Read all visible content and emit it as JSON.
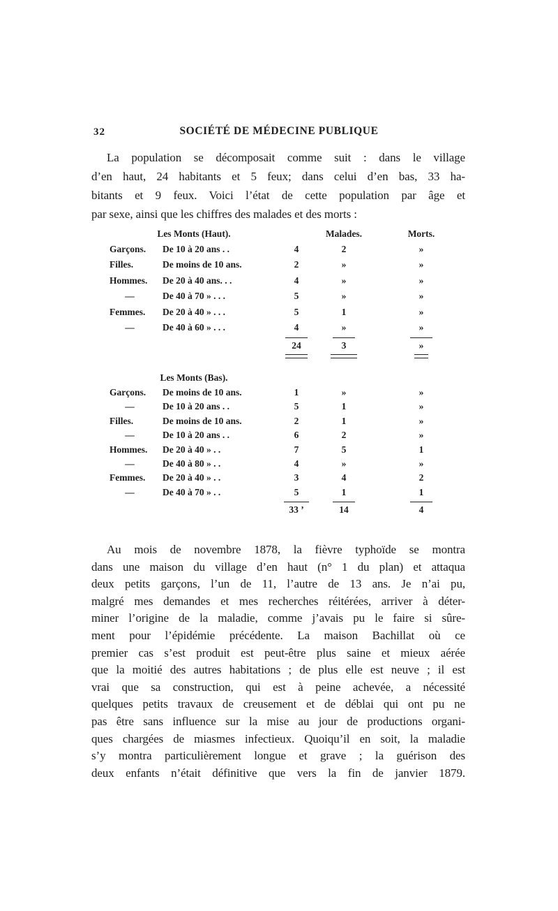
{
  "page": {
    "number": "32",
    "header_title": "SOCIÉTÉ DE MÉDECINE PUBLIQUE"
  },
  "paragraph_population": {
    "justify_last": false,
    "lines": [
      "La population se décomposait comme suit : dans le village",
      "d’en haut, 24 habitants et 5 feux; dans celui d’en bas, 33 ha-",
      "bitants et 9 feux. Voici l’état de cette population par âge et",
      "par sexe, ainsi que les chiffres des malades et des morts :"
    ]
  },
  "table_haut": {
    "title": "Les Monts  (Haut).",
    "col_malades": "Malades.",
    "col_morts": "Morts.",
    "rows": [
      {
        "label": "Garçons.",
        "age": "De 10 à 20 ans . .",
        "count": "4",
        "malades": "2",
        "morts": "»"
      },
      {
        "label": "Filles.",
        "age": "De moins de 10 ans.",
        "count": "2",
        "malades": "»",
        "morts": "»"
      },
      {
        "label": "Hommes.",
        "age": "De 20 à 40 ans. . .",
        "count": "4",
        "malades": "»",
        "morts": "»"
      },
      {
        "label": "—",
        "age": "De 40 à 70  » . . .",
        "count": "5",
        "malades": "»",
        "morts": "»"
      },
      {
        "label": "Femmes.",
        "age": "De 20 à 40  » . . .",
        "count": "5",
        "malades": "1",
        "morts": "»"
      },
      {
        "label": "—",
        "age": "De 40 à 60  » . . .",
        "count": "4",
        "malades": "»",
        "morts": "»"
      }
    ],
    "totals": {
      "count": "24",
      "malades": "3",
      "morts": "»"
    }
  },
  "table_bas": {
    "title": "Les Monts (Bas).",
    "rows": [
      {
        "label": "Garçons.",
        "age": "De moins de 10 ans.",
        "count": "1",
        "malades": "»",
        "morts": "»"
      },
      {
        "label": "—",
        "age": "De 10 à 20 ans . .",
        "count": "5",
        "malades": "1",
        "morts": "»"
      },
      {
        "label": "Filles.",
        "age": "De moins de 10 ans.",
        "count": "2",
        "malades": "1",
        "morts": "»"
      },
      {
        "label": "—",
        "age": "De 10 à 20 ans . .",
        "count": "6",
        "malades": "2",
        "morts": "»"
      },
      {
        "label": "Hommes.",
        "age": "De 20 à 40  »  . .",
        "count": "7",
        "malades": "5",
        "morts": "1"
      },
      {
        "label": "—",
        "age": "De 40 à 80  »  . .",
        "count": "4",
        "malades": "»",
        "morts": "»"
      },
      {
        "label": "Femmes.",
        "age": "De 20 à 40  »  . .",
        "count": "3",
        "malades": "4",
        "morts": "2"
      },
      {
        "label": "—",
        "age": "De 40 à 70  »  . .",
        "count": "5",
        "malades": "1",
        "morts": "1"
      }
    ],
    "totals": {
      "count": "33 ’",
      "malades": "14",
      "morts": "4"
    }
  },
  "paragraph_novembre": {
    "justify_last": true,
    "lines": [
      "Au mois de novembre 1878, la fièvre typhoïde se montra",
      "dans une maison du village d’en haut (n° 1 du plan) et attaqua",
      "deux petits garçons, l’un de 11, l’autre de 13 ans. Je n’ai pu,",
      "malgré mes demandes et mes recherches réitérées, arriver à déter-",
      "miner l’origine de la maladie, comme j’avais pu le faire si sûre-",
      "ment pour l’épidémie précédente. La maison Bachillat où ce",
      "premier cas s’est produit est peut-être plus saine et mieux aérée",
      "que la moitié des autres habitations ; de plus elle est neuve ; il est",
      "vrai que sa construction, qui est à peine achevée, a nécessité",
      "quelques petits travaux de creusement et de déblai qui ont pu ne",
      "pas être sans influence sur la mise au jour de productions organi-",
      "ques chargées de miasmes infectieux. Quoiqu’il en soit, la maladie",
      "s’y montra particulièrement longue et grave ; la guérison des",
      "deux enfants n’était définitive que vers la fin de janvier 1879."
    ]
  }
}
